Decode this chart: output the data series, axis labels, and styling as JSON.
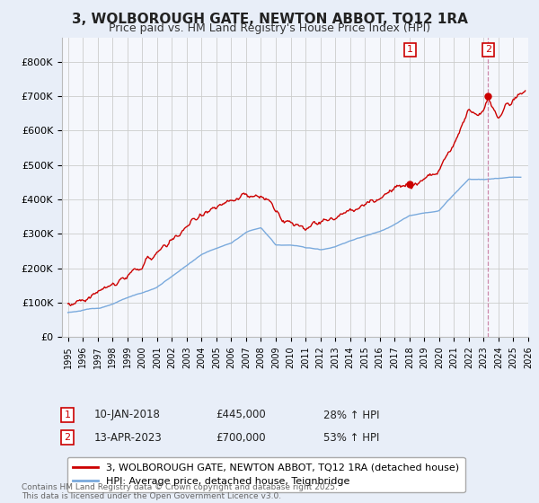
{
  "title": "3, WOLBOROUGH GATE, NEWTON ABBOT, TQ12 1RA",
  "subtitle": "Price paid vs. HM Land Registry's House Price Index (HPI)",
  "red_label": "3, WOLBOROUGH GATE, NEWTON ABBOT, TQ12 1RA (detached house)",
  "blue_label": "HPI: Average price, detached house, Teignbridge",
  "annotation1": {
    "num": "1",
    "date": "10-JAN-2018",
    "price": "£445,000",
    "pct": "28% ↑ HPI",
    "x_year": 2018.04,
    "y_val": 445000
  },
  "annotation2": {
    "num": "2",
    "date": "13-APR-2023",
    "price": "£700,000",
    "pct": "53% ↑ HPI",
    "x_year": 2023.29,
    "y_val": 700000
  },
  "yticks": [
    0,
    100,
    200,
    300,
    400,
    500,
    600,
    700,
    800
  ],
  "xlim": [
    1994.6,
    2026.0
  ],
  "ylim": [
    0,
    870000
  ],
  "fig_bg_color": "#e8eef8",
  "plot_bg_color": "#f5f7fc",
  "grid_color": "#cccccc",
  "red_color": "#cc0000",
  "blue_color": "#7aaadd",
  "vline_color": "#cc88aa",
  "footnote": "Contains HM Land Registry data © Crown copyright and database right 2025.\nThis data is licensed under the Open Government Licence v3.0."
}
